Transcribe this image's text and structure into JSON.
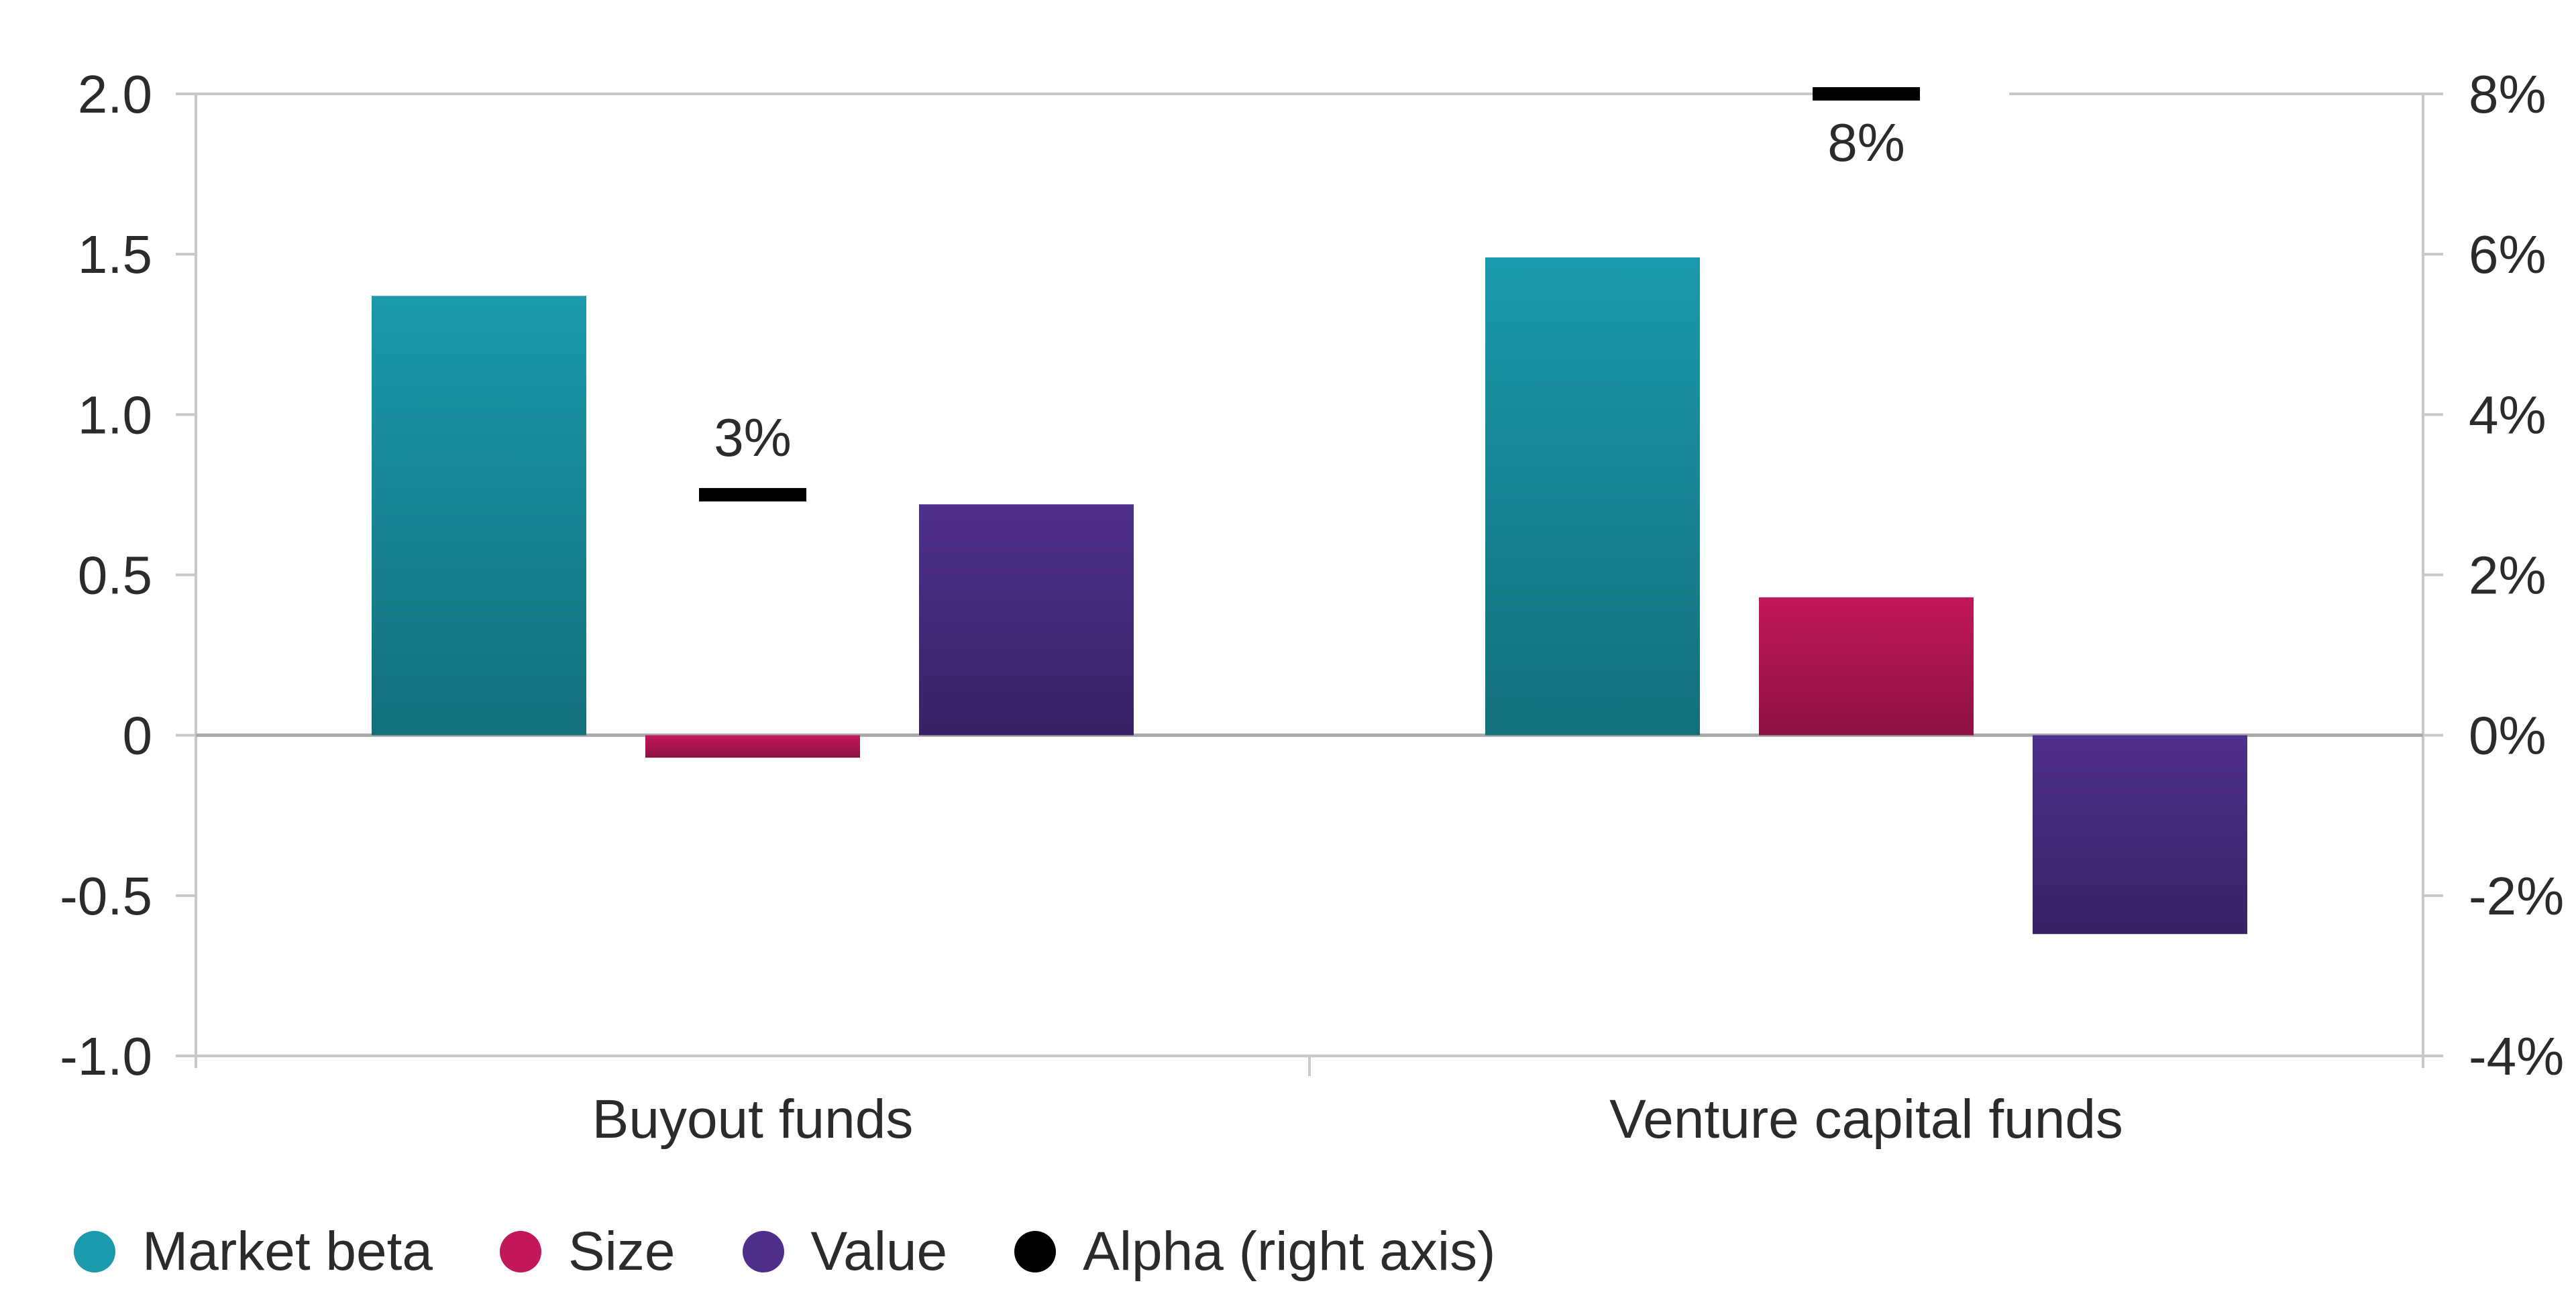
{
  "chart_data": {
    "type": "bar",
    "categories": [
      "Buyout funds",
      "Venture capital funds"
    ],
    "series": [
      {
        "name": "Market beta",
        "color": "#1a9aac",
        "values": [
          1.37,
          1.49
        ]
      },
      {
        "name": "Size",
        "color": "#c2185b",
        "values": [
          -0.07,
          0.43
        ]
      },
      {
        "name": "Value",
        "color": "#4e2f8c",
        "values": [
          0.72,
          -0.62
        ]
      }
    ],
    "alpha": {
      "name": "Alpha (right axis)",
      "color": "#000000",
      "values": [
        3,
        8
      ],
      "labels": [
        "3%",
        "8%"
      ]
    },
    "ylim": [
      -1.0,
      2.0
    ],
    "yticks": [
      "2.0",
      "1.5",
      "1.0",
      "0.5",
      "0",
      "-0.5",
      "-1.0"
    ],
    "ytick_values": [
      2.0,
      1.5,
      1.0,
      0.5,
      0,
      -0.5,
      -1.0
    ],
    "y2lim": [
      -4,
      8
    ],
    "y2ticks": [
      "8%",
      "6%",
      "4%",
      "2%",
      "0%",
      "-2%",
      "-4%"
    ],
    "y2tick_values": [
      8,
      6,
      4,
      2,
      0,
      -2,
      -4
    ],
    "grid": false,
    "legend_position": "bottom-left"
  }
}
